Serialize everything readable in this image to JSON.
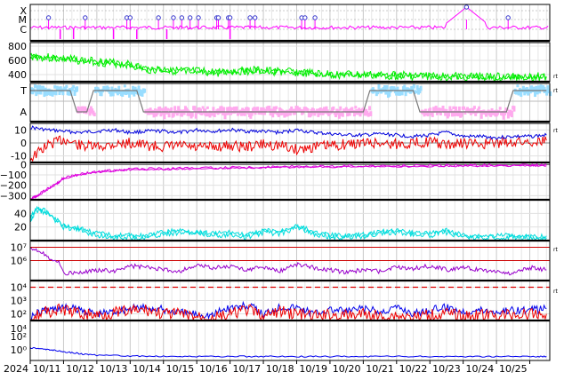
{
  "chart_data": [
    {
      "type": "line",
      "panel": "flare-class",
      "tick_labels": [
        "X",
        "M",
        "C"
      ],
      "series": [
        {
          "color": "#ff00ff",
          "flare_markers_x": [
            10.55,
            11.65,
            12.9,
            13.0,
            13.85,
            14.3,
            14.55,
            14.8,
            15.05,
            15.6,
            15.65,
            15.95,
            16.0,
            16.6,
            16.75,
            18.15,
            18.25,
            18.55,
            23.1,
            24.35
          ],
          "peak_x": 23.1
        }
      ]
    },
    {
      "type": "line",
      "panel": "solar-wind-speed",
      "y_ticks": [
        "800",
        "600",
        "400"
      ],
      "ylim": [
        300,
        850
      ],
      "series": [
        {
          "color": "#00ee00",
          "x": [
            10.0,
            10.5,
            11.0,
            11.5,
            12.0,
            12.5,
            13.0,
            13.5,
            14.0,
            14.5,
            15.0,
            15.5,
            16.0,
            16.5,
            17.0,
            17.5,
            18.0,
            18.5,
            19.0,
            19.5,
            20.0,
            20.5,
            21.0,
            21.5,
            22.0,
            22.5,
            23.0,
            23.5,
            24.0,
            24.5,
            25.0,
            25.5
          ],
          "values": [
            660,
            640,
            620,
            600,
            580,
            560,
            540,
            470,
            470,
            450,
            440,
            430,
            440,
            460,
            450,
            440,
            430,
            410,
            400,
            400,
            390,
            390,
            390,
            380,
            380,
            370,
            370,
            370,
            360,
            370,
            370,
            370
          ]
        }
      ]
    },
    {
      "type": "scatter",
      "panel": "imf-sector",
      "tick_labels": [
        "T",
        "A"
      ],
      "series": [
        {
          "color": "#99ddff"
        },
        {
          "color": "#ffaaee"
        },
        {
          "color": "#777777",
          "x": [
            10.0,
            11.2,
            11.4,
            11.7,
            11.9,
            13.2,
            13.4,
            20.0,
            20.2,
            21.5,
            21.7,
            24.3,
            24.5,
            25.5
          ],
          "values": [
            1,
            1,
            0,
            0,
            1,
            1,
            0,
            0,
            1,
            1,
            0,
            0,
            1,
            1
          ]
        }
      ]
    },
    {
      "type": "line",
      "panel": "imf-bt-bz",
      "y_ticks": [
        "10",
        "0",
        "-10"
      ],
      "ylim": [
        -15,
        15
      ],
      "series": [
        {
          "color": "#0000dd",
          "x": [
            10.0,
            10.5,
            11.0,
            11.5,
            12.0,
            12.5,
            13.0,
            13.5,
            14.0,
            14.5,
            15.0,
            15.5,
            16.0,
            16.5,
            17.0,
            17.5,
            18.0,
            18.5,
            19.0,
            19.5,
            20.0,
            20.5,
            21.0,
            21.5,
            22.0,
            22.5,
            23.0,
            23.5,
            24.0,
            24.5,
            25.0,
            25.5
          ],
          "values": [
            12,
            10,
            9,
            8,
            9,
            10,
            8,
            9,
            9,
            8,
            10,
            9,
            10,
            9,
            9,
            8,
            10,
            8,
            7,
            6,
            6,
            7,
            6,
            5,
            6,
            8,
            5,
            5,
            4,
            5,
            5,
            6
          ]
        },
        {
          "color": "#ee0000",
          "x": [
            10.0,
            10.5,
            11.0,
            11.5,
            12.0,
            12.5,
            13.0,
            13.5,
            14.0,
            14.5,
            15.0,
            15.5,
            16.0,
            16.5,
            17.0,
            17.5,
            18.0,
            18.5,
            19.0,
            19.5,
            20.0,
            20.5,
            21.0,
            21.5,
            22.0,
            22.5,
            23.0,
            23.5,
            24.0,
            24.5,
            25.0,
            25.5
          ],
          "values": [
            -12,
            -2,
            3,
            -2,
            -3,
            -1,
            0,
            -2,
            -3,
            -2,
            -4,
            -3,
            -2,
            -3,
            -1,
            -2,
            -5,
            -3,
            -2,
            -1,
            0,
            0,
            -1,
            0,
            1,
            -2,
            0,
            -1,
            0,
            1,
            1,
            2
          ]
        }
      ]
    },
    {
      "type": "line",
      "panel": "dst-index",
      "y_ticks": [
        "0",
        "−100",
        "−200",
        "−300"
      ],
      "ylim": [
        -340,
        20
      ],
      "series": [
        {
          "color": "#dd00dd",
          "x": [
            10.0,
            10.2,
            10.5,
            10.8,
            11.0,
            11.5,
            12.0,
            12.5,
            13.0,
            14.0,
            15.0,
            16.0,
            17.0,
            18.0,
            19.0,
            20.0,
            21.0,
            22.0,
            23.0,
            24.0,
            25.0,
            25.5
          ],
          "values": [
            -330,
            -300,
            -240,
            -180,
            -130,
            -90,
            -70,
            -55,
            -45,
            -40,
            -35,
            -30,
            -28,
            -20,
            -18,
            -12,
            -14,
            -10,
            -8,
            -6,
            -5,
            -5
          ]
        }
      ]
    },
    {
      "type": "line",
      "panel": "proton-density",
      "y_ticks": [
        "40",
        "20"
      ],
      "ylim": [
        0,
        60
      ],
      "series": [
        {
          "color": "#00dddd",
          "x": [
            10.0,
            10.2,
            10.5,
            11.0,
            11.5,
            12.0,
            12.5,
            13.0,
            13.5,
            14.0,
            14.5,
            15.0,
            15.5,
            16.0,
            16.5,
            17.0,
            17.5,
            18.0,
            18.5,
            19.0,
            19.5,
            20.0,
            20.5,
            21.0,
            21.5,
            22.0,
            22.5,
            23.0,
            23.5,
            24.0,
            24.5,
            25.0,
            25.5
          ],
          "values": [
            30,
            45,
            40,
            20,
            15,
            8,
            5,
            5,
            4,
            10,
            12,
            10,
            8,
            9,
            5,
            12,
            10,
            20,
            10,
            5,
            5,
            6,
            10,
            12,
            10,
            8,
            12,
            5,
            4,
            4,
            6,
            3,
            4
          ]
        }
      ]
    },
    {
      "type": "line",
      "panel": "electron-flux",
      "y_ticks": [
        "10⁷",
        "10⁶"
      ],
      "y_scale": "log",
      "thresholds": [
        10000000,
        1000000
      ],
      "threshold_color": "#cc0000",
      "series": [
        {
          "color": "#9900cc",
          "x": [
            10.0,
            10.5,
            11.0,
            11.5,
            12.0,
            12.5,
            13.0,
            13.5,
            14.0,
            14.5,
            15.0,
            15.5,
            16.0,
            16.5,
            17.0,
            17.5,
            18.0,
            18.5,
            19.0,
            19.5,
            20.0,
            20.5,
            21.0,
            21.5,
            22.0,
            22.5,
            23.0,
            23.5,
            24.0,
            24.5,
            25.0,
            25.5
          ],
          "values": [
            10000000,
            2000000,
            120000,
            110000,
            200000,
            150000,
            400000,
            300000,
            200000,
            150000,
            400000,
            300000,
            350000,
            200000,
            300000,
            150000,
            500000,
            300000,
            200000,
            120000,
            200000,
            150000,
            300000,
            250000,
            400000,
            200000,
            300000,
            200000,
            150000,
            100000,
            300000,
            200000
          ]
        }
      ]
    },
    {
      "type": "line",
      "panel": "proton-flux",
      "y_ticks": [
        "10⁴",
        "10³",
        "10²"
      ],
      "y_scale": "log",
      "threshold": 10000,
      "threshold_color": "#dd0000",
      "series": [
        {
          "color": "#0000ee",
          "x": [
            10.0,
            10.5,
            11.0,
            11.5,
            12.0,
            12.5,
            13.0,
            13.5,
            14.0,
            14.5,
            15.0,
            15.5,
            16.0,
            16.5,
            17.0,
            17.5,
            18.0,
            18.5,
            19.0,
            19.5,
            20.0,
            20.5,
            21.0,
            21.5,
            22.0,
            22.5,
            23.0,
            23.5,
            24.0,
            24.5,
            25.0,
            25.5
          ],
          "values": [
            50,
            200,
            300,
            200,
            100,
            150,
            250,
            300,
            200,
            120,
            100,
            80,
            300,
            400,
            80,
            350,
            300,
            100,
            200,
            150,
            250,
            120,
            300,
            100,
            200,
            300,
            150,
            200,
            150,
            200,
            180,
            250
          ]
        },
        {
          "color": "#ee0000",
          "x": [
            10.0,
            10.5,
            11.0,
            11.5,
            12.0,
            12.5,
            13.0,
            13.5,
            14.0,
            14.5,
            15.0,
            15.5,
            16.0,
            16.5,
            17.0,
            17.5,
            18.0,
            18.5,
            19.0,
            19.5,
            20.0,
            20.5,
            21.0,
            21.5,
            22.0,
            22.5,
            23.0,
            23.5,
            24.0,
            24.5,
            25.0,
            25.5
          ],
          "values": [
            40,
            150,
            200,
            100,
            80,
            120,
            150,
            200,
            100,
            90,
            60,
            50,
            80,
            200,
            40,
            150,
            100,
            60,
            80,
            70,
            100,
            60,
            80,
            50,
            80,
            100,
            60,
            80,
            70,
            90,
            80,
            100
          ]
        }
      ]
    },
    {
      "type": "line",
      "panel": "bottom-flux",
      "y_ticks": [
        "10²",
        "10⁰"
      ],
      "y_scale": "log",
      "x_ticks": [
        "2024",
        "10/11",
        "10/12",
        "10/13",
        "10/14",
        "10/15",
        "10/16",
        "10/17",
        "10/18",
        "10/19",
        "10/20",
        "10/21",
        "10/22",
        "10/23",
        "10/24",
        "10/25"
      ],
      "series": [
        {
          "color": "#0000ee",
          "x": [
            10.0,
            10.3,
            10.6,
            11.0,
            11.5,
            12.0,
            13.0,
            14.0,
            15.0,
            16.0,
            17.0,
            18.0,
            19.0,
            20.0,
            21.0,
            22.0,
            23.0,
            24.0,
            25.0,
            25.5
          ],
          "values": [
            2,
            1.5,
            1,
            0.5,
            0.25,
            0.15,
            0.12,
            0.1,
            0.1,
            0.1,
            0.1,
            0.1,
            0.1,
            0.1,
            0.1,
            0.1,
            0.1,
            0.1,
            0.1,
            0.1
          ]
        }
      ]
    }
  ],
  "right_marker": "rt"
}
